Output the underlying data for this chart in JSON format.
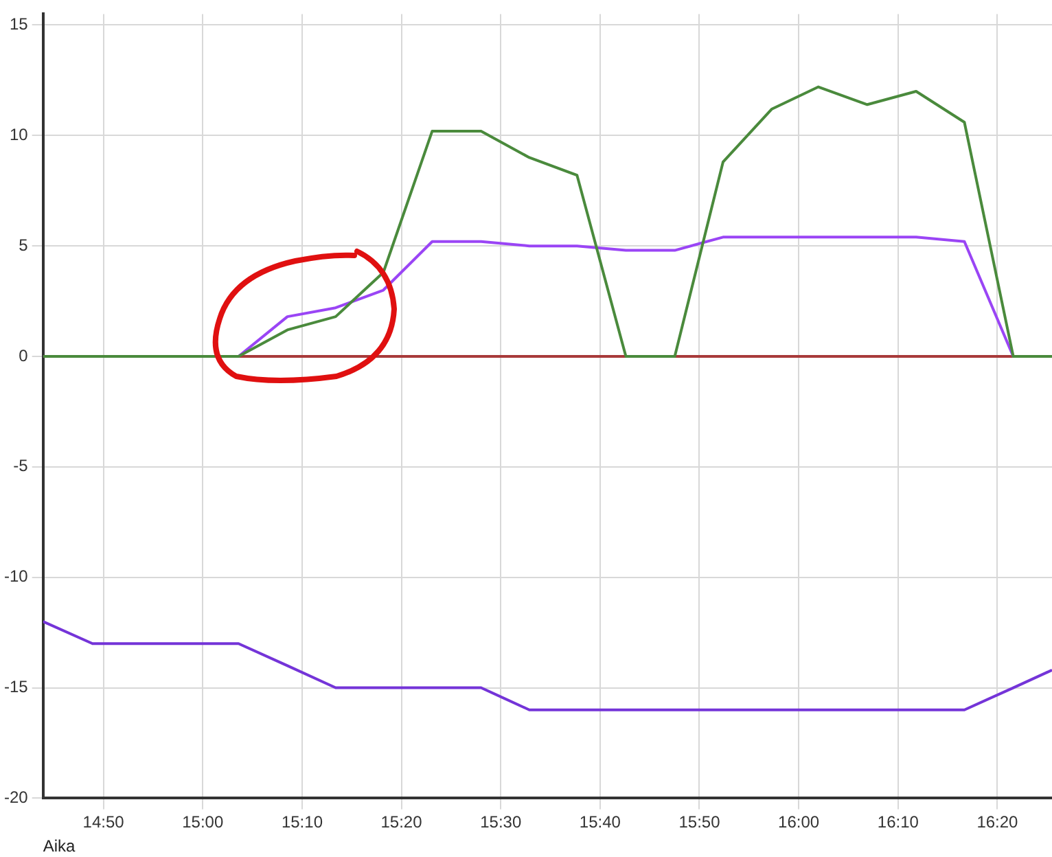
{
  "chart_data": {
    "type": "line",
    "xlabel": "Aika",
    "x": [
      14.732,
      14.815,
      15.06,
      15.142,
      15.223,
      15.303,
      15.385,
      15.467,
      15.548,
      15.628,
      15.71,
      15.792,
      15.873,
      15.955,
      16.033,
      16.115,
      16.197,
      16.278,
      16.36,
      16.425
    ],
    "series": [
      {
        "color": "#a83a3a",
        "values": [
          0,
          0,
          0,
          0,
          0,
          0,
          0,
          0,
          0,
          0,
          0,
          0,
          0,
          0,
          0,
          0,
          0,
          0,
          0,
          0
        ]
      },
      {
        "color": "#9a45f5",
        "values": [
          0,
          0,
          0,
          1.8,
          2.2,
          3.0,
          5.2,
          5.2,
          5.0,
          5.0,
          4.8,
          4.8,
          5.4,
          5.4,
          5.4,
          5.4,
          5.4,
          5.2,
          0,
          0
        ]
      },
      {
        "color": "#4a8a3c",
        "values": [
          0,
          0,
          0,
          1.2,
          1.8,
          3.8,
          10.2,
          10.2,
          9.0,
          8.2,
          0,
          0,
          8.8,
          11.2,
          12.2,
          11.4,
          12.0,
          10.6,
          0,
          0
        ]
      },
      {
        "color": "#7434d8",
        "values": [
          -12,
          -13,
          -13,
          -14,
          -15,
          -15,
          -15,
          -15,
          -16,
          -16,
          -16,
          -16,
          -16,
          -16,
          -16,
          -16,
          -16,
          -16,
          -15,
          -14.2
        ]
      }
    ],
    "xlim": [
      14.732,
      16.425
    ],
    "xticks": [
      {
        "value": 14.8333,
        "label": "14:50"
      },
      {
        "value": 15,
        "label": "15:00"
      },
      {
        "value": 15.1667,
        "label": "15:10"
      },
      {
        "value": 15.3333,
        "label": "15:20"
      },
      {
        "value": 15.5,
        "label": "15:30"
      },
      {
        "value": 15.6667,
        "label": "15:40"
      },
      {
        "value": 15.8333,
        "label": "15:50"
      },
      {
        "value": 16,
        "label": "16:00"
      },
      {
        "value": 16.1667,
        "label": "16:10"
      },
      {
        "value": 16.3333,
        "label": "16:20"
      }
    ],
    "ylim": [
      -20,
      15.5
    ],
    "yticks": [
      -20,
      -15,
      -10,
      -5,
      0,
      5,
      10,
      15
    ],
    "grid": true,
    "legend": false,
    "marker": "none",
    "line_style": "solid"
  }
}
